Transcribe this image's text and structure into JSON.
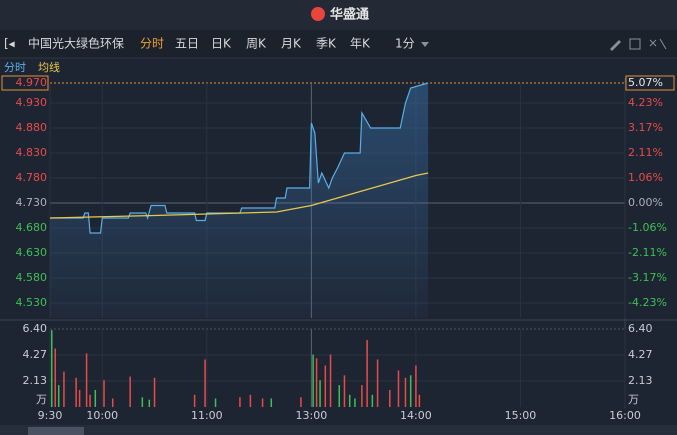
{
  "header": {
    "logo": "华盛通"
  },
  "toolbar": {
    "stock_name": "中国光大绿色环保",
    "tabs": [
      "分时",
      "五日",
      "日K",
      "周K",
      "月K",
      "季K",
      "年K"
    ],
    "interval": "1分"
  },
  "chart_data": [
    {
      "type": "line",
      "series": [
        {
          "name": "分时",
          "color": "#5aaee8",
          "x": [
            0,
            19,
            20,
            22,
            23,
            29,
            30,
            45,
            46,
            55,
            56,
            58,
            66,
            67,
            83,
            84,
            89,
            90,
            109,
            110,
            129,
            130,
            135,
            136,
            149,
            150,
            152,
            154,
            156,
            160,
            162,
            165,
            169,
            178,
            179,
            184,
            201,
            204,
            207,
            217
          ],
          "values": [
            4.7,
            4.7,
            4.71,
            4.71,
            4.67,
            4.67,
            4.7,
            4.7,
            4.71,
            4.71,
            4.7,
            4.725,
            4.725,
            4.71,
            4.71,
            4.695,
            4.695,
            4.71,
            4.71,
            4.72,
            4.72,
            4.74,
            4.74,
            4.76,
            4.76,
            4.89,
            4.87,
            4.77,
            4.79,
            4.76,
            4.78,
            4.8,
            4.83,
            4.83,
            4.91,
            4.88,
            4.88,
            4.93,
            4.96,
            4.97
          ]
        },
        {
          "name": "均线",
          "color": "#e8c84a",
          "x": [
            0,
            60,
            130,
            150,
            165,
            190,
            210,
            217
          ],
          "values": [
            4.7,
            4.705,
            4.712,
            4.725,
            4.74,
            4.765,
            4.785,
            4.79
          ]
        }
      ],
      "xlim": [
        0,
        330
      ],
      "ylim": [
        4.5,
        4.97
      ],
      "yticks": [
        {
          "value": 4.97,
          "label": "4.970"
        },
        {
          "value": 4.93,
          "label": "4.930"
        },
        {
          "value": 4.88,
          "label": "4.880"
        },
        {
          "value": 4.83,
          "label": "4.830"
        },
        {
          "value": 4.78,
          "label": "4.780"
        },
        {
          "value": 4.73,
          "label": "4.730"
        },
        {
          "value": 4.68,
          "label": "4.680"
        },
        {
          "value": 4.63,
          "label": "4.630"
        },
        {
          "value": 4.58,
          "label": "4.580"
        },
        {
          "value": 4.53,
          "label": "4.530"
        }
      ],
      "y2lim": [
        -4.86,
        5.07
      ],
      "y2ticks": [
        {
          "value": 5.07,
          "label": "5.07%"
        },
        {
          "value": 4.23,
          "label": "4.23%"
        },
        {
          "value": 3.17,
          "label": "3.17%"
        },
        {
          "value": 2.11,
          "label": "2.11%"
        },
        {
          "value": 1.06,
          "label": "1.06%"
        },
        {
          "value": 0,
          "label": "0.00%"
        },
        {
          "value": -1.06,
          "label": "-1.06%"
        },
        {
          "value": -2.11,
          "label": "-2.11%"
        },
        {
          "value": -3.17,
          "label": "-3.17%"
        },
        {
          "value": -4.23,
          "label": "-4.23%"
        }
      ],
      "grid": true
    },
    {
      "type": "bar",
      "unit": "万",
      "x": [
        1,
        3,
        5,
        8,
        15,
        17,
        21,
        23,
        26,
        31,
        36,
        46,
        53,
        57,
        60,
        83,
        89,
        95,
        109,
        115,
        122,
        127,
        144,
        151,
        153,
        155,
        158,
        161,
        166,
        169,
        172,
        175,
        179,
        182,
        185,
        188,
        195,
        200,
        204,
        207,
        210,
        212
      ],
      "values": [
        6.3,
        4.8,
        1.8,
        2.9,
        2.4,
        1.4,
        4.4,
        1.0,
        1.4,
        2.2,
        0.7,
        2.5,
        0.8,
        0.6,
        2.4,
        1.0,
        3.9,
        0.7,
        0.8,
        1.0,
        0.7,
        0.7,
        0.8,
        4.3,
        4.0,
        2.2,
        3.4,
        4.3,
        1.8,
        2.6,
        1.0,
        0.7,
        1.8,
        5.5,
        1.0,
        3.9,
        1.4,
        3.0,
        2.4,
        2.6,
        3.4,
        1.0
      ],
      "colors": [
        "#3fbf55",
        "#e84a4a",
        "#3fbf55",
        "#e84a4a",
        "#e84a4a",
        "#e84a4a",
        "#e84a4a",
        "#e84a4a",
        "#3fbf55",
        "#e84a4a",
        "#e84a4a",
        "#e84a4a",
        "#3fbf55",
        "#3fbf55",
        "#e84a4a",
        "#e84a4a",
        "#e84a4a",
        "#3fbf55",
        "#e84a4a",
        "#e84a4a",
        "#e84a4a",
        "#3fbf55",
        "#e84a4a",
        "#3fbf55",
        "#e84a4a",
        "#3fbf55",
        "#e84a4a",
        "#e84a4a",
        "#3fbf55",
        "#e84a4a",
        "#3fbf55",
        "#3fbf55",
        "#e84a4a",
        "#e84a4a",
        "#3fbf55",
        "#e84a4a",
        "#e84a4a",
        "#e84a4a",
        "#e84a4a",
        "#3fbf55",
        "#e84a4a",
        "#e84a4a"
      ],
      "xlim": [
        0,
        330
      ],
      "xticks": [
        {
          "value": 0,
          "label": "9:30"
        },
        {
          "value": 30,
          "label": "10:00"
        },
        {
          "value": 90,
          "label": "11:00"
        },
        {
          "value": 150,
          "label": "13:00"
        },
        {
          "value": 210,
          "label": "14:00"
        },
        {
          "value": 270,
          "label": "15:00"
        },
        {
          "value": 330,
          "label": "16:00"
        }
      ],
      "ylim": [
        0,
        6.4
      ],
      "yticks": [
        {
          "value": 6.4,
          "label": "6.40"
        },
        4.27,
        2.13
      ]
    }
  ]
}
